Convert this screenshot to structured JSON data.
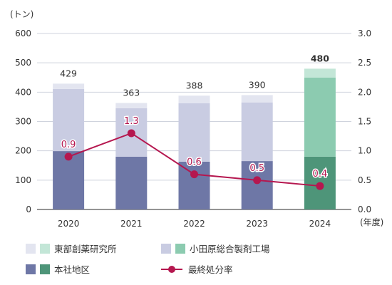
{
  "chart_data": {
    "type": "bar",
    "ylabel_left": "(トン)",
    "xlabel": "(年度)",
    "categories": [
      "2020",
      "2021",
      "2022",
      "2023",
      "2024"
    ],
    "ylim_left": [
      0,
      600
    ],
    "yticks_left": [
      "0",
      "100",
      "200",
      "300",
      "400",
      "500",
      "600"
    ],
    "ylim_right": [
      0,
      3.0
    ],
    "yticks_right": [
      "0.0",
      "0.5",
      "1.0",
      "1.5",
      "2.0",
      "2.5",
      "3.0"
    ],
    "stack_series": [
      {
        "name": "本社地区",
        "values": [
          199,
          180,
          163,
          165,
          180
        ],
        "colors": [
          "#6e77a6",
          "#6e77a6",
          "#6e77a6",
          "#6e77a6",
          "#4e9579"
        ]
      },
      {
        "name": "小田原総合製剤工場",
        "values": [
          212,
          165,
          199,
          200,
          270
        ],
        "colors": [
          "#c9cce2",
          "#c9cce2",
          "#c9cce2",
          "#c9cce2",
          "#8ccbb0"
        ]
      },
      {
        "name": "東部創薬研究所",
        "values": [
          18,
          18,
          26,
          25,
          30
        ],
        "colors": [
          "#e3e5f0",
          "#e3e5f0",
          "#e3e5f0",
          "#e3e5f0",
          "#c3e6d7"
        ]
      }
    ],
    "totals": [
      "429",
      "363",
      "388",
      "390",
      "480"
    ],
    "line_series": {
      "name": "最終処分率",
      "values": [
        0.9,
        1.3,
        0.6,
        0.5,
        0.4
      ],
      "labels": [
        "0.9",
        "1.3",
        "0.6",
        "0.5",
        "0.4"
      ],
      "color": "#b5174f"
    },
    "grid": true
  },
  "legend": {
    "items": [
      {
        "label": "東部創薬研究所",
        "colors": [
          "#e3e5f0",
          "#c3e6d7"
        ]
      },
      {
        "label": "小田原総合製剤工場",
        "colors": [
          "#c9cce2",
          "#8ccbb0"
        ]
      },
      {
        "label": "本社地区",
        "colors": [
          "#6e77a6",
          "#4e9579"
        ]
      },
      {
        "label": "最終処分率",
        "color": "#b5174f"
      }
    ]
  }
}
